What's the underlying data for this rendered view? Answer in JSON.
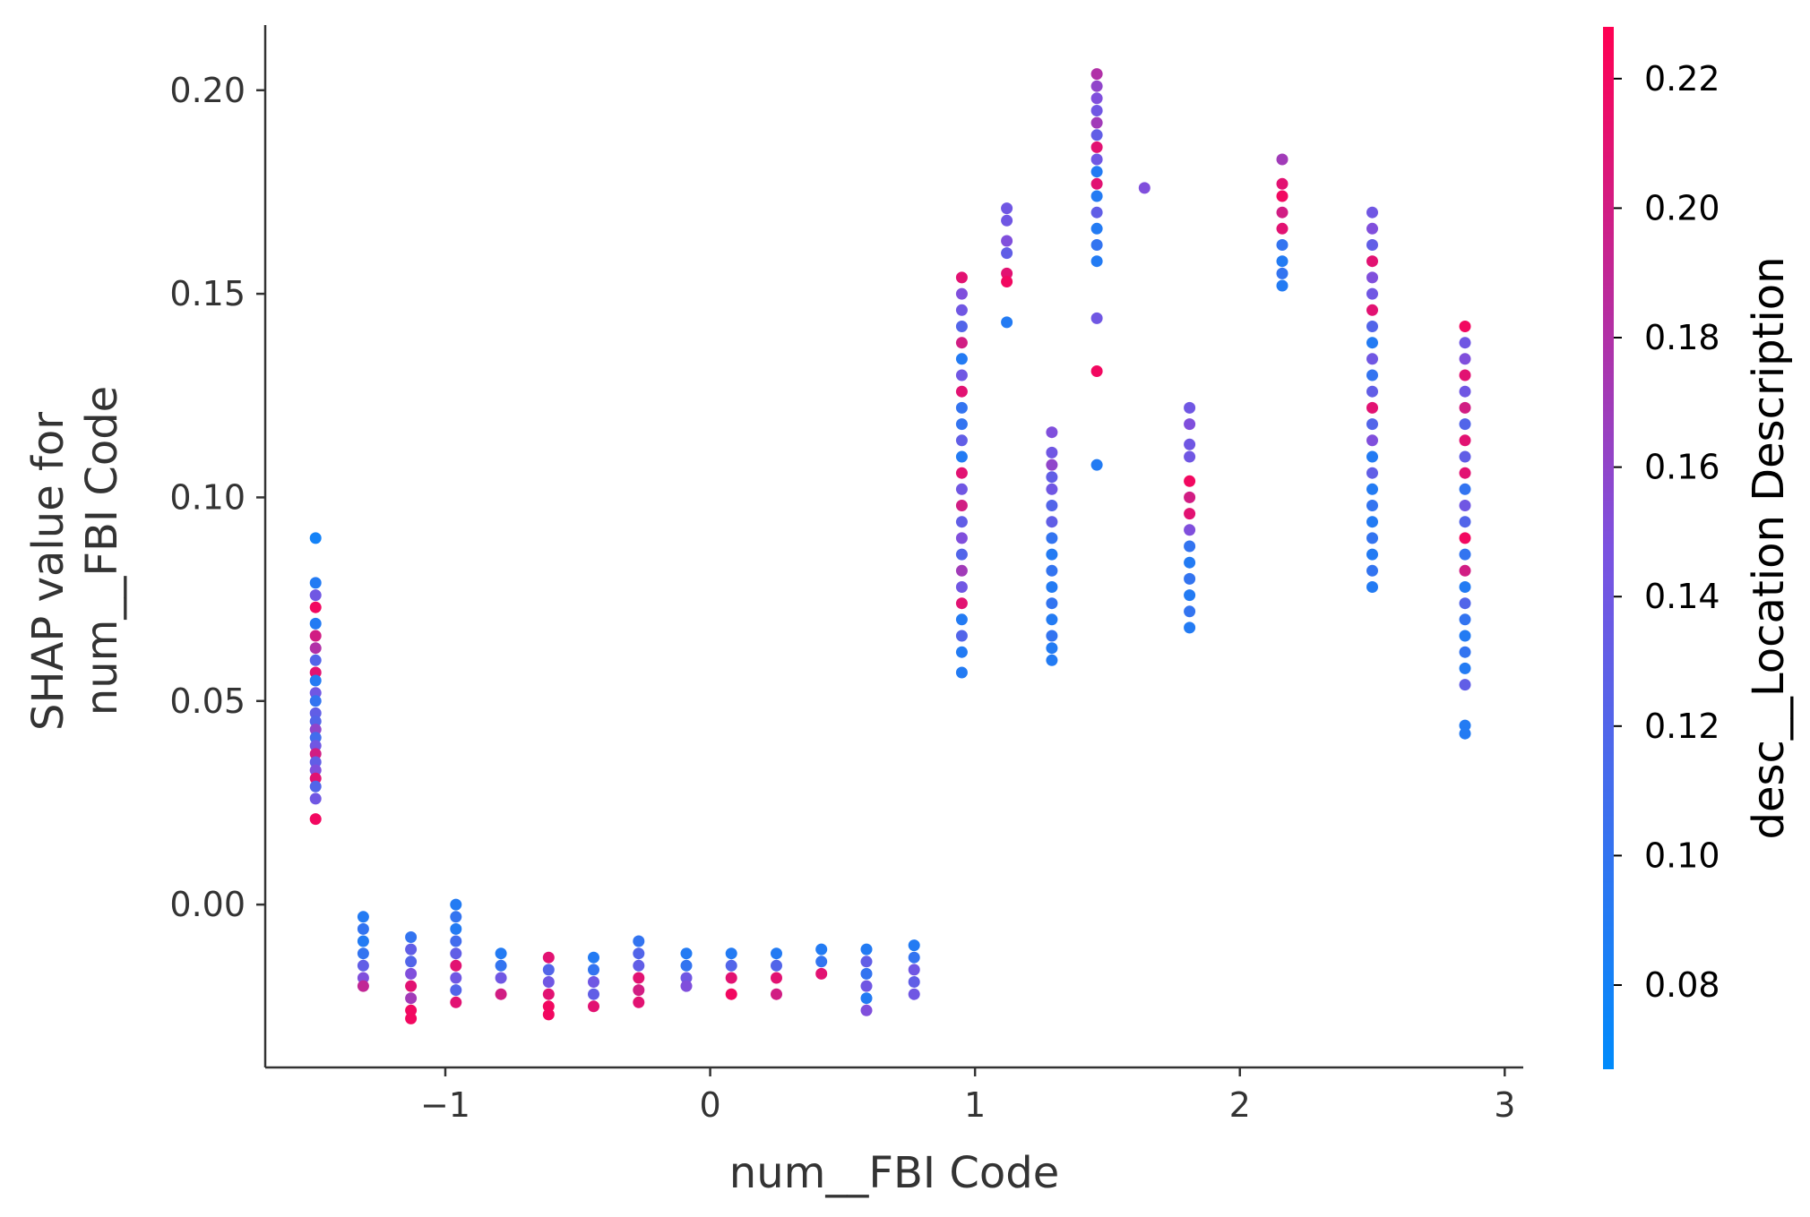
{
  "chart_data": {
    "type": "scatter",
    "xlabel": "num__FBI Code",
    "ylabel_lines": [
      "SHAP value for",
      "num__FBI Code"
    ],
    "xlim": [
      -1.68,
      3.07
    ],
    "ylim": [
      -0.04,
      0.216
    ],
    "x_ticks": [
      {
        "value": -1,
        "label": "−1"
      },
      {
        "value": 0,
        "label": "0"
      },
      {
        "value": 1,
        "label": "1"
      },
      {
        "value": 2,
        "label": "2"
      },
      {
        "value": 3,
        "label": "3"
      }
    ],
    "y_ticks": [
      {
        "value": 0.0,
        "label": "0.00"
      },
      {
        "value": 0.05,
        "label": "0.05"
      },
      {
        "value": 0.1,
        "label": "0.10"
      },
      {
        "value": 0.15,
        "label": "0.15"
      },
      {
        "value": 0.2,
        "label": "0.20"
      }
    ],
    "colorbar": {
      "label": "desc__Location Description",
      "range": [
        0.067,
        0.228
      ],
      "ticks": [
        {
          "value": 0.08,
          "label": "0.08"
        },
        {
          "value": 0.1,
          "label": "0.10"
        },
        {
          "value": 0.12,
          "label": "0.12"
        },
        {
          "value": 0.14,
          "label": "0.14"
        },
        {
          "value": 0.16,
          "label": "0.16"
        },
        {
          "value": 0.18,
          "label": "0.18"
        },
        {
          "value": 0.2,
          "label": "0.20"
        },
        {
          "value": 0.22,
          "label": "0.22"
        }
      ],
      "colors": [
        "#008bfb",
        "#7c52e0",
        "#ff0052"
      ]
    },
    "grid": false,
    "points": [
      [
        -1.49,
        0.09,
        0.08
      ],
      [
        -1.49,
        0.079,
        0.09
      ],
      [
        -1.49,
        0.076,
        0.14
      ],
      [
        -1.49,
        0.073,
        0.22
      ],
      [
        -1.49,
        0.069,
        0.09
      ],
      [
        -1.49,
        0.066,
        0.2
      ],
      [
        -1.49,
        0.063,
        0.18
      ],
      [
        -1.49,
        0.06,
        0.12
      ],
      [
        -1.49,
        0.057,
        0.21
      ],
      [
        -1.49,
        0.055,
        0.09
      ],
      [
        -1.49,
        0.052,
        0.14
      ],
      [
        -1.49,
        0.05,
        0.1
      ],
      [
        -1.49,
        0.047,
        0.13
      ],
      [
        -1.49,
        0.045,
        0.12
      ],
      [
        -1.49,
        0.043,
        0.16
      ],
      [
        -1.49,
        0.041,
        0.11
      ],
      [
        -1.49,
        0.039,
        0.14
      ],
      [
        -1.49,
        0.037,
        0.2
      ],
      [
        -1.49,
        0.035,
        0.13
      ],
      [
        -1.49,
        0.033,
        0.15
      ],
      [
        -1.49,
        0.031,
        0.21
      ],
      [
        -1.49,
        0.029,
        0.12
      ],
      [
        -1.49,
        0.026,
        0.14
      ],
      [
        -1.49,
        0.021,
        0.22
      ],
      [
        -1.31,
        -0.003,
        0.09
      ],
      [
        -1.31,
        -0.006,
        0.1
      ],
      [
        -1.31,
        -0.009,
        0.09
      ],
      [
        -1.31,
        -0.012,
        0.1
      ],
      [
        -1.31,
        -0.015,
        0.13
      ],
      [
        -1.31,
        -0.018,
        0.15
      ],
      [
        -1.31,
        -0.02,
        0.19
      ],
      [
        -1.13,
        -0.008,
        0.1
      ],
      [
        -1.13,
        -0.011,
        0.13
      ],
      [
        -1.13,
        -0.014,
        0.12
      ],
      [
        -1.13,
        -0.017,
        0.15
      ],
      [
        -1.13,
        -0.02,
        0.21
      ],
      [
        -1.13,
        -0.023,
        0.17
      ],
      [
        -1.13,
        -0.026,
        0.22
      ],
      [
        -1.13,
        -0.028,
        0.22
      ],
      [
        -0.96,
        0.0,
        0.09
      ],
      [
        -0.96,
        -0.003,
        0.1
      ],
      [
        -0.96,
        -0.006,
        0.09
      ],
      [
        -0.96,
        -0.009,
        0.11
      ],
      [
        -0.96,
        -0.012,
        0.13
      ],
      [
        -0.96,
        -0.015,
        0.21
      ],
      [
        -0.96,
        -0.018,
        0.14
      ],
      [
        -0.96,
        -0.021,
        0.12
      ],
      [
        -0.96,
        -0.024,
        0.21
      ],
      [
        -0.79,
        -0.012,
        0.09
      ],
      [
        -0.79,
        -0.015,
        0.1
      ],
      [
        -0.79,
        -0.018,
        0.14
      ],
      [
        -0.79,
        -0.022,
        0.2
      ],
      [
        -0.61,
        -0.013,
        0.21
      ],
      [
        -0.61,
        -0.016,
        0.12
      ],
      [
        -0.61,
        -0.019,
        0.14
      ],
      [
        -0.61,
        -0.022,
        0.21
      ],
      [
        -0.61,
        -0.025,
        0.22
      ],
      [
        -0.61,
        -0.027,
        0.22
      ],
      [
        -0.44,
        -0.013,
        0.09
      ],
      [
        -0.44,
        -0.016,
        0.1
      ],
      [
        -0.44,
        -0.019,
        0.14
      ],
      [
        -0.44,
        -0.022,
        0.13
      ],
      [
        -0.44,
        -0.025,
        0.21
      ],
      [
        -0.27,
        -0.009,
        0.1
      ],
      [
        -0.27,
        -0.012,
        0.12
      ],
      [
        -0.27,
        -0.015,
        0.13
      ],
      [
        -0.27,
        -0.018,
        0.21
      ],
      [
        -0.27,
        -0.021,
        0.2
      ],
      [
        -0.27,
        -0.024,
        0.21
      ],
      [
        -0.09,
        -0.012,
        0.09
      ],
      [
        -0.09,
        -0.015,
        0.1
      ],
      [
        -0.09,
        -0.018,
        0.14
      ],
      [
        -0.09,
        -0.02,
        0.15
      ],
      [
        0.08,
        -0.012,
        0.09
      ],
      [
        0.08,
        -0.015,
        0.12
      ],
      [
        0.08,
        -0.018,
        0.21
      ],
      [
        0.08,
        -0.022,
        0.22
      ],
      [
        0.25,
        -0.012,
        0.09
      ],
      [
        0.25,
        -0.015,
        0.12
      ],
      [
        0.25,
        -0.018,
        0.21
      ],
      [
        0.25,
        -0.022,
        0.2
      ],
      [
        0.42,
        -0.011,
        0.09
      ],
      [
        0.42,
        -0.014,
        0.1
      ],
      [
        0.42,
        -0.017,
        0.21
      ],
      [
        0.59,
        -0.011,
        0.09
      ],
      [
        0.59,
        -0.014,
        0.13
      ],
      [
        0.59,
        -0.017,
        0.1
      ],
      [
        0.59,
        -0.02,
        0.14
      ],
      [
        0.59,
        -0.023,
        0.09
      ],
      [
        0.59,
        -0.026,
        0.15
      ],
      [
        0.77,
        -0.01,
        0.09
      ],
      [
        0.77,
        -0.013,
        0.1
      ],
      [
        0.77,
        -0.016,
        0.14
      ],
      [
        0.77,
        -0.019,
        0.13
      ],
      [
        0.77,
        -0.022,
        0.14
      ],
      [
        0.95,
        0.154,
        0.21
      ],
      [
        0.95,
        0.15,
        0.15
      ],
      [
        0.95,
        0.146,
        0.14
      ],
      [
        0.95,
        0.142,
        0.12
      ],
      [
        0.95,
        0.138,
        0.2
      ],
      [
        0.95,
        0.134,
        0.09
      ],
      [
        0.95,
        0.13,
        0.14
      ],
      [
        0.95,
        0.126,
        0.21
      ],
      [
        0.95,
        0.122,
        0.1
      ],
      [
        0.95,
        0.118,
        0.1
      ],
      [
        0.95,
        0.114,
        0.13
      ],
      [
        0.95,
        0.11,
        0.09
      ],
      [
        0.95,
        0.106,
        0.21
      ],
      [
        0.95,
        0.102,
        0.14
      ],
      [
        0.95,
        0.098,
        0.2
      ],
      [
        0.95,
        0.094,
        0.13
      ],
      [
        0.95,
        0.09,
        0.15
      ],
      [
        0.95,
        0.086,
        0.12
      ],
      [
        0.95,
        0.082,
        0.17
      ],
      [
        0.95,
        0.078,
        0.14
      ],
      [
        0.95,
        0.074,
        0.21
      ],
      [
        0.95,
        0.07,
        0.09
      ],
      [
        0.95,
        0.066,
        0.12
      ],
      [
        0.95,
        0.062,
        0.09
      ],
      [
        0.95,
        0.057,
        0.09
      ],
      [
        1.12,
        0.171,
        0.14
      ],
      [
        1.12,
        0.168,
        0.14
      ],
      [
        1.12,
        0.163,
        0.15
      ],
      [
        1.12,
        0.16,
        0.13
      ],
      [
        1.12,
        0.155,
        0.21
      ],
      [
        1.12,
        0.153,
        0.22
      ],
      [
        1.12,
        0.143,
        0.09
      ],
      [
        1.29,
        0.116,
        0.15
      ],
      [
        1.29,
        0.111,
        0.14
      ],
      [
        1.29,
        0.108,
        0.16
      ],
      [
        1.29,
        0.105,
        0.13
      ],
      [
        1.29,
        0.102,
        0.14
      ],
      [
        1.29,
        0.098,
        0.12
      ],
      [
        1.29,
        0.094,
        0.13
      ],
      [
        1.29,
        0.09,
        0.1
      ],
      [
        1.29,
        0.086,
        0.09
      ],
      [
        1.29,
        0.082,
        0.1
      ],
      [
        1.29,
        0.078,
        0.09
      ],
      [
        1.29,
        0.074,
        0.1
      ],
      [
        1.29,
        0.07,
        0.09
      ],
      [
        1.29,
        0.066,
        0.1
      ],
      [
        1.29,
        0.063,
        0.09
      ],
      [
        1.29,
        0.06,
        0.09
      ],
      [
        1.46,
        0.204,
        0.18
      ],
      [
        1.46,
        0.201,
        0.16
      ],
      [
        1.46,
        0.198,
        0.15
      ],
      [
        1.46,
        0.195,
        0.14
      ],
      [
        1.46,
        0.192,
        0.17
      ],
      [
        1.46,
        0.189,
        0.13
      ],
      [
        1.46,
        0.186,
        0.21
      ],
      [
        1.46,
        0.183,
        0.14
      ],
      [
        1.46,
        0.18,
        0.09
      ],
      [
        1.46,
        0.177,
        0.21
      ],
      [
        1.46,
        0.174,
        0.09
      ],
      [
        1.46,
        0.17,
        0.13
      ],
      [
        1.46,
        0.166,
        0.09
      ],
      [
        1.46,
        0.162,
        0.1
      ],
      [
        1.46,
        0.158,
        0.09
      ],
      [
        1.46,
        0.144,
        0.14
      ],
      [
        1.46,
        0.131,
        0.22
      ],
      [
        1.46,
        0.108,
        0.09
      ],
      [
        1.64,
        0.176,
        0.15
      ],
      [
        1.81,
        0.122,
        0.14
      ],
      [
        1.81,
        0.118,
        0.15
      ],
      [
        1.81,
        0.113,
        0.14
      ],
      [
        1.81,
        0.11,
        0.14
      ],
      [
        1.81,
        0.104,
        0.22
      ],
      [
        1.81,
        0.1,
        0.2
      ],
      [
        1.81,
        0.096,
        0.21
      ],
      [
        1.81,
        0.092,
        0.15
      ],
      [
        1.81,
        0.088,
        0.1
      ],
      [
        1.81,
        0.084,
        0.09
      ],
      [
        1.81,
        0.08,
        0.1
      ],
      [
        1.81,
        0.076,
        0.09
      ],
      [
        1.81,
        0.072,
        0.1
      ],
      [
        1.81,
        0.068,
        0.09
      ],
      [
        2.16,
        0.183,
        0.17
      ],
      [
        2.16,
        0.177,
        0.21
      ],
      [
        2.16,
        0.174,
        0.22
      ],
      [
        2.16,
        0.17,
        0.2
      ],
      [
        2.16,
        0.166,
        0.21
      ],
      [
        2.16,
        0.162,
        0.1
      ],
      [
        2.16,
        0.158,
        0.09
      ],
      [
        2.16,
        0.155,
        0.1
      ],
      [
        2.16,
        0.152,
        0.09
      ],
      [
        2.5,
        0.17,
        0.14
      ],
      [
        2.5,
        0.166,
        0.15
      ],
      [
        2.5,
        0.162,
        0.13
      ],
      [
        2.5,
        0.158,
        0.21
      ],
      [
        2.5,
        0.154,
        0.15
      ],
      [
        2.5,
        0.15,
        0.14
      ],
      [
        2.5,
        0.146,
        0.21
      ],
      [
        2.5,
        0.142,
        0.12
      ],
      [
        2.5,
        0.138,
        0.09
      ],
      [
        2.5,
        0.134,
        0.14
      ],
      [
        2.5,
        0.13,
        0.1
      ],
      [
        2.5,
        0.126,
        0.13
      ],
      [
        2.5,
        0.122,
        0.21
      ],
      [
        2.5,
        0.118,
        0.12
      ],
      [
        2.5,
        0.114,
        0.15
      ],
      [
        2.5,
        0.11,
        0.09
      ],
      [
        2.5,
        0.106,
        0.13
      ],
      [
        2.5,
        0.102,
        0.09
      ],
      [
        2.5,
        0.098,
        0.1
      ],
      [
        2.5,
        0.094,
        0.09
      ],
      [
        2.5,
        0.09,
        0.1
      ],
      [
        2.5,
        0.086,
        0.09
      ],
      [
        2.5,
        0.082,
        0.1
      ],
      [
        2.5,
        0.078,
        0.09
      ],
      [
        2.85,
        0.142,
        0.22
      ],
      [
        2.85,
        0.138,
        0.14
      ],
      [
        2.85,
        0.134,
        0.15
      ],
      [
        2.85,
        0.13,
        0.21
      ],
      [
        2.85,
        0.126,
        0.14
      ],
      [
        2.85,
        0.122,
        0.2
      ],
      [
        2.85,
        0.118,
        0.12
      ],
      [
        2.85,
        0.114,
        0.21
      ],
      [
        2.85,
        0.11,
        0.13
      ],
      [
        2.85,
        0.106,
        0.21
      ],
      [
        2.85,
        0.102,
        0.1
      ],
      [
        2.85,
        0.098,
        0.14
      ],
      [
        2.85,
        0.094,
        0.12
      ],
      [
        2.85,
        0.09,
        0.22
      ],
      [
        2.85,
        0.086,
        0.1
      ],
      [
        2.85,
        0.082,
        0.2
      ],
      [
        2.85,
        0.078,
        0.09
      ],
      [
        2.85,
        0.074,
        0.12
      ],
      [
        2.85,
        0.07,
        0.1
      ],
      [
        2.85,
        0.066,
        0.09
      ],
      [
        2.85,
        0.062,
        0.1
      ],
      [
        2.85,
        0.058,
        0.09
      ],
      [
        2.85,
        0.054,
        0.13
      ],
      [
        2.85,
        0.044,
        0.09
      ],
      [
        2.85,
        0.042,
        0.09
      ]
    ]
  }
}
